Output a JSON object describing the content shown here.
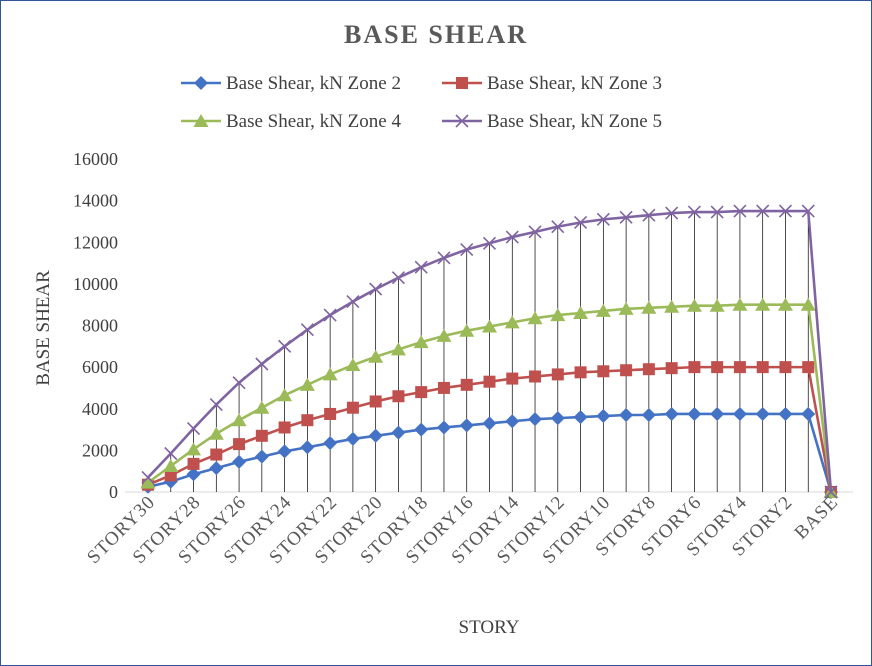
{
  "chart_data": {
    "type": "line",
    "title": "BASE SHEAR",
    "xlabel": "STORY",
    "ylabel": "BASE SHEAR",
    "ylim": [
      0,
      16000
    ],
    "yticks": [
      "0",
      "2000",
      "4000",
      "6000",
      "8000",
      "10000",
      "12000",
      "14000",
      "16000"
    ],
    "legend_position": "top",
    "grid": false,
    "drop_lines": true,
    "categories": [
      "STORY30",
      "STORY29",
      "STORY28",
      "STORY27",
      "STORY26",
      "STORY25",
      "STORY24",
      "STORY23",
      "STORY22",
      "STORY21",
      "STORY20",
      "STORY19",
      "STORY18",
      "STORY17",
      "STORY16",
      "STORY15",
      "STORY14",
      "STORY13",
      "STORY12",
      "STORY11",
      "STORY10",
      "STORY9",
      "STORY8",
      "STORY7",
      "STORY6",
      "STORY5",
      "STORY4",
      "STORY3",
      "STORY2",
      "STORY1",
      "BASE"
    ],
    "tick_labels": [
      "STORY30",
      "STORY28",
      "STORY26",
      "STORY24",
      "STORY22",
      "STORY20",
      "STORY18",
      "STORY16",
      "STORY14",
      "STORY12",
      "STORY10",
      "STORY8",
      "STORY6",
      "STORY4",
      "STORY2",
      "BASE"
    ],
    "series": [
      {
        "name": "Base Shear, kN Zone 2",
        "color": "#4472c4",
        "marker": "diamond",
        "values": [
          250,
          500,
          850,
          1150,
          1450,
          1700,
          1950,
          2150,
          2350,
          2550,
          2700,
          2850,
          3000,
          3100,
          3200,
          3300,
          3400,
          3500,
          3550,
          3600,
          3650,
          3700,
          3700,
          3750,
          3750,
          3750,
          3750,
          3750,
          3750,
          3750,
          0
        ]
      },
      {
        "name": "Base Shear, kN Zone 3",
        "color": "#c0504d",
        "marker": "square",
        "values": [
          350,
          800,
          1350,
          1800,
          2300,
          2700,
          3100,
          3450,
          3750,
          4050,
          4350,
          4600,
          4800,
          5000,
          5150,
          5300,
          5450,
          5550,
          5650,
          5750,
          5800,
          5850,
          5900,
          5950,
          6000,
          6000,
          6000,
          6000,
          6000,
          6000,
          0
        ]
      },
      {
        "name": "Base Shear, kN Zone 4",
        "color": "#9bbb59",
        "marker": "triangle",
        "values": [
          450,
          1250,
          2050,
          2800,
          3450,
          4050,
          4650,
          5150,
          5650,
          6100,
          6500,
          6850,
          7200,
          7500,
          7750,
          7950,
          8150,
          8350,
          8500,
          8600,
          8700,
          8800,
          8850,
          8900,
          8950,
          8950,
          9000,
          9000,
          9000,
          9000,
          0
        ]
      },
      {
        "name": "Base Shear, kN Zone 5",
        "color": "#8064a2",
        "marker": "x",
        "values": [
          700,
          1850,
          3050,
          4200,
          5250,
          6150,
          7000,
          7800,
          8500,
          9150,
          9750,
          10300,
          10800,
          11250,
          11650,
          11950,
          12250,
          12500,
          12750,
          12950,
          13100,
          13200,
          13300,
          13400,
          13450,
          13450,
          13500,
          13500,
          13500,
          13500,
          0
        ]
      }
    ]
  }
}
